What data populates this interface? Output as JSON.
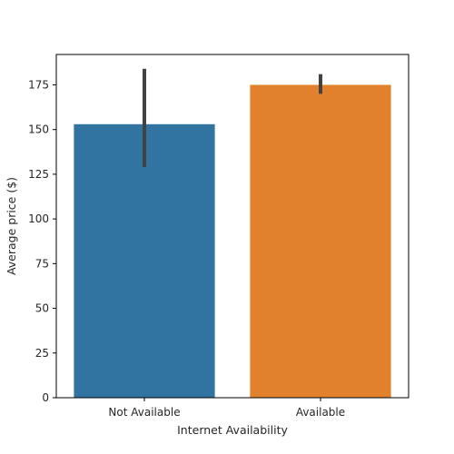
{
  "chart_data": {
    "type": "bar",
    "title": "",
    "xlabel": "Internet Availability",
    "ylabel": "Average price ($)",
    "categories": [
      "Not Available",
      "Available"
    ],
    "values": [
      153,
      175
    ],
    "error_low": [
      129,
      170
    ],
    "error_high": [
      184,
      181
    ],
    "ylim": [
      0,
      192
    ],
    "yticks": [
      0,
      25,
      50,
      75,
      100,
      125,
      150,
      175
    ],
    "grid": false,
    "colors": [
      "#3274a1",
      "#e1812c"
    ],
    "errorbar_color": "#424242"
  }
}
